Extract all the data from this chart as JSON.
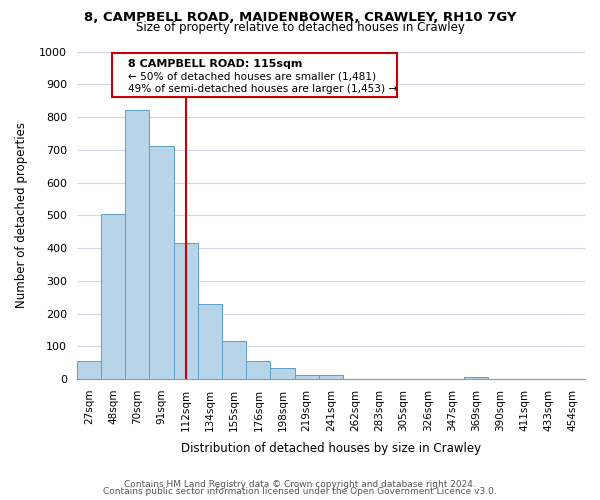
{
  "title1": "8, CAMPBELL ROAD, MAIDENBOWER, CRAWLEY, RH10 7GY",
  "title2": "Size of property relative to detached houses in Crawley",
  "xlabel": "Distribution of detached houses by size in Crawley",
  "ylabel": "Number of detached properties",
  "bin_labels": [
    "27sqm",
    "48sqm",
    "70sqm",
    "91sqm",
    "112sqm",
    "134sqm",
    "155sqm",
    "176sqm",
    "198sqm",
    "219sqm",
    "241sqm",
    "262sqm",
    "283sqm",
    "305sqm",
    "326sqm",
    "347sqm",
    "369sqm",
    "390sqm",
    "411sqm",
    "433sqm",
    "454sqm"
  ],
  "bar_heights": [
    55,
    505,
    820,
    710,
    415,
    230,
    115,
    55,
    35,
    12,
    12,
    0,
    0,
    0,
    0,
    0,
    5,
    0,
    0,
    0,
    0
  ],
  "bar_color": "#b8d4e8",
  "bar_edge_color": "#5a9ec9",
  "marker_bin_index": 4,
  "marker_color": "#cc0000",
  "annotation_title": "8 CAMPBELL ROAD: 115sqm",
  "annotation_line1": "← 50% of detached houses are smaller (1,481)",
  "annotation_line2": "49% of semi-detached houses are larger (1,453) →",
  "ylim": [
    0,
    1000
  ],
  "yticks": [
    0,
    100,
    200,
    300,
    400,
    500,
    600,
    700,
    800,
    900,
    1000
  ],
  "footer1": "Contains HM Land Registry data © Crown copyright and database right 2024.",
  "footer2": "Contains public sector information licensed under the Open Government Licence v3.0.",
  "background_color": "#ffffff",
  "grid_color": "#d0d8e8"
}
